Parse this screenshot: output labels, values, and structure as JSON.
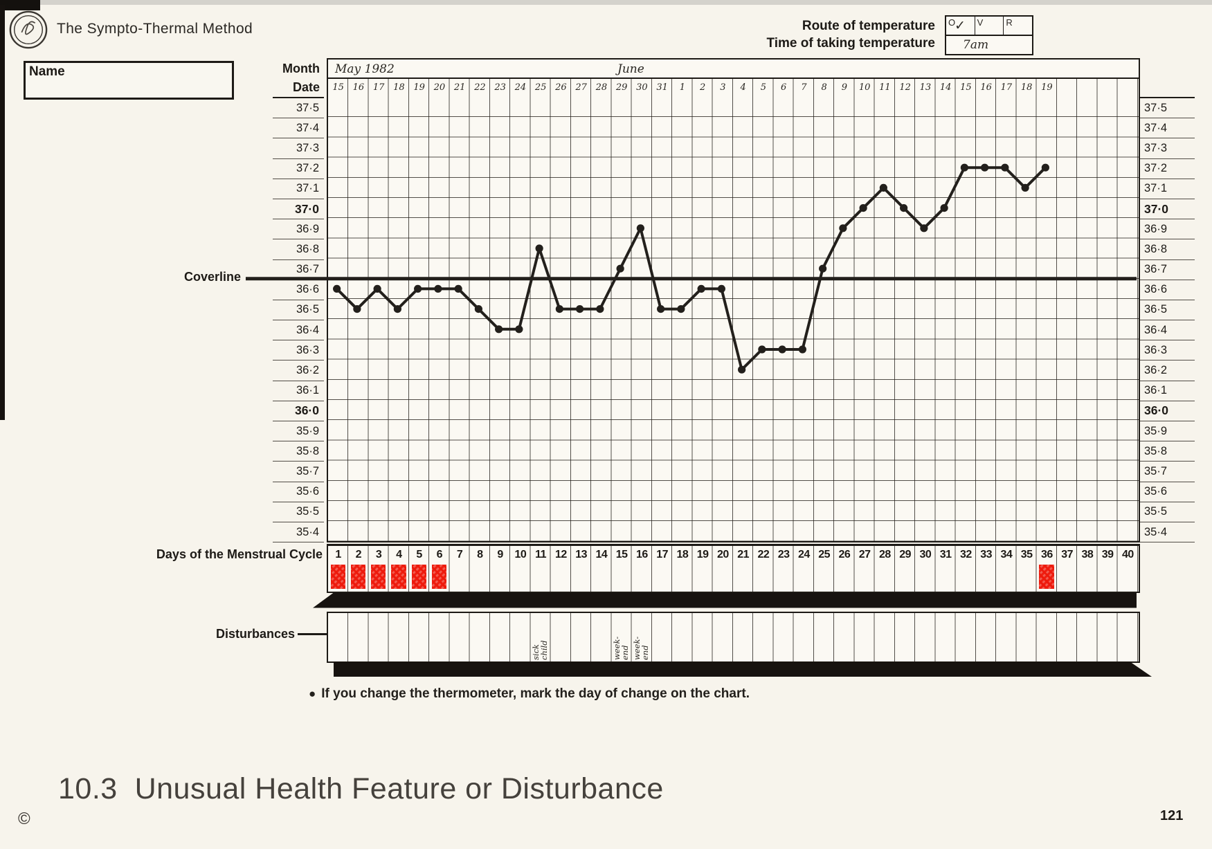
{
  "page": {
    "title": "The Sympto-Thermal Method",
    "name_label": "Name",
    "note": "If you change the thermometer, mark the day of change on the chart.",
    "note_bullet": "●",
    "section_heading": "10.3  Unusual Health Feature or Disturbance",
    "copyright": "©",
    "page_number": "121"
  },
  "route": {
    "route_label": "Route of temperature",
    "time_label": "Time of taking temperature",
    "options": [
      {
        "label": "O",
        "mark": "✓"
      },
      {
        "label": "V",
        "mark": ""
      },
      {
        "label": "R",
        "mark": ""
      }
    ],
    "time_value": "7am"
  },
  "table_labels": {
    "month_label": "Month",
    "date_label": "Date",
    "coverline_label": "Coverline",
    "cycle_label": "Days of the Menstrual Cycle",
    "disturbance_label": "Disturbances"
  },
  "chart_data": {
    "type": "line",
    "month_left": "May 1982",
    "month_right": "June",
    "dates": [
      "15",
      "16",
      "17",
      "18",
      "19",
      "20",
      "21",
      "22",
      "23",
      "24",
      "25",
      "26",
      "27",
      "28",
      "29",
      "30",
      "31",
      "1",
      "2",
      "3",
      "4",
      "5",
      "6",
      "7",
      "8",
      "9",
      "10",
      "11",
      "12",
      "13",
      "14",
      "15",
      "16",
      "17",
      "18",
      "19"
    ],
    "cycle_day_numbers": [
      1,
      2,
      3,
      4,
      5,
      6,
      7,
      8,
      9,
      10,
      11,
      12,
      13,
      14,
      15,
      16,
      17,
      18,
      19,
      20,
      21,
      22,
      23,
      24,
      25,
      26,
      27,
      28,
      29,
      30,
      31,
      32,
      33,
      34,
      35,
      36,
      37,
      38,
      39,
      40
    ],
    "temperatures_celsius": [
      36.6,
      36.5,
      36.6,
      36.5,
      36.6,
      36.6,
      36.6,
      36.5,
      36.4,
      36.4,
      36.8,
      36.5,
      36.5,
      36.5,
      36.7,
      36.9,
      36.5,
      36.5,
      36.6,
      36.6,
      36.2,
      36.3,
      36.3,
      36.3,
      36.7,
      36.9,
      37.0,
      37.1,
      37.0,
      36.9,
      37.0,
      37.2,
      37.2,
      37.2,
      37.1,
      37.2
    ],
    "y_tick_labels": [
      "37·5",
      "37·4",
      "37·3",
      "37·2",
      "37·1",
      "37·0",
      "36·9",
      "36·8",
      "36·7",
      "36·6",
      "36·5",
      "36·4",
      "36·3",
      "36·2",
      "36·1",
      "36·0",
      "35·9",
      "35·8",
      "35·7",
      "35·6",
      "35·5",
      "35·4"
    ],
    "bold_ticks": [
      "37·0",
      "36·0"
    ],
    "ylim": [
      35.35,
      37.55
    ],
    "coverline_value": 36.65,
    "menstruation_days": [
      1,
      2,
      3,
      4,
      5,
      6,
      36
    ],
    "disturbances": [
      {
        "day": 11,
        "lines": [
          "sick",
          "child"
        ]
      },
      {
        "day": 15,
        "lines": [
          "week-",
          "end"
        ]
      },
      {
        "day": 16,
        "lines": [
          "week-",
          "end"
        ]
      }
    ],
    "grid": true,
    "legend": false
  },
  "colors": {
    "menses_red": "#ee1a0c",
    "ink": "#23201c",
    "paper": "#f7f4ec"
  }
}
